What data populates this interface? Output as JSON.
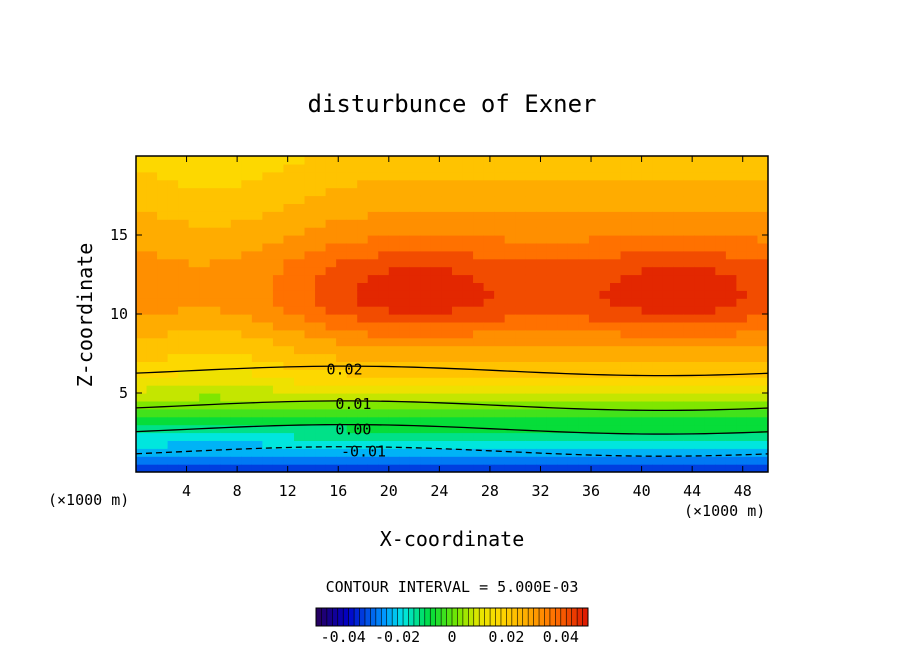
{
  "chart_data": {
    "type": "contour",
    "title": "disturbunce of Exner",
    "xlabel": "X-coordinate",
    "ylabel": "Z-coordinate",
    "x_unit": "(×1000 m)",
    "x_unit_right": "(×1000 m)",
    "xlim": [
      0,
      50
    ],
    "ylim": [
      0,
      20
    ],
    "x_ticks": [
      4,
      8,
      12,
      16,
      20,
      24,
      28,
      32,
      36,
      40,
      44,
      48
    ],
    "y_ticks": [
      5,
      10,
      15
    ],
    "contour_interval_text": "CONTOUR INTERVAL = 5.000E-03",
    "contour_labels": [
      {
        "text": "0.02",
        "x": 16.5,
        "y": 6.5
      },
      {
        "text": "0.01",
        "x": 17.2,
        "y": 4.3
      },
      {
        "text": "0.00",
        "x": 17.2,
        "y": 2.7
      },
      {
        "text": "-0.01",
        "x": 18.0,
        "y": 1.3
      }
    ],
    "colorbar": {
      "range": [
        -0.05,
        0.05
      ],
      "tick_labels": [
        "-0.04",
        "-0.02",
        "0",
        "0.02",
        "0.04"
      ],
      "tick_values": [
        -0.04,
        -0.02,
        0,
        0.02,
        0.04
      ]
    },
    "field_features": [
      {
        "type": "max",
        "x": 22,
        "y": 11.3,
        "value": 0.044
      },
      {
        "type": "max",
        "x": 43,
        "y": 11.3,
        "value": 0.044
      },
      {
        "type": "min",
        "x": 5,
        "y": 0.2,
        "value": -0.03
      }
    ]
  }
}
